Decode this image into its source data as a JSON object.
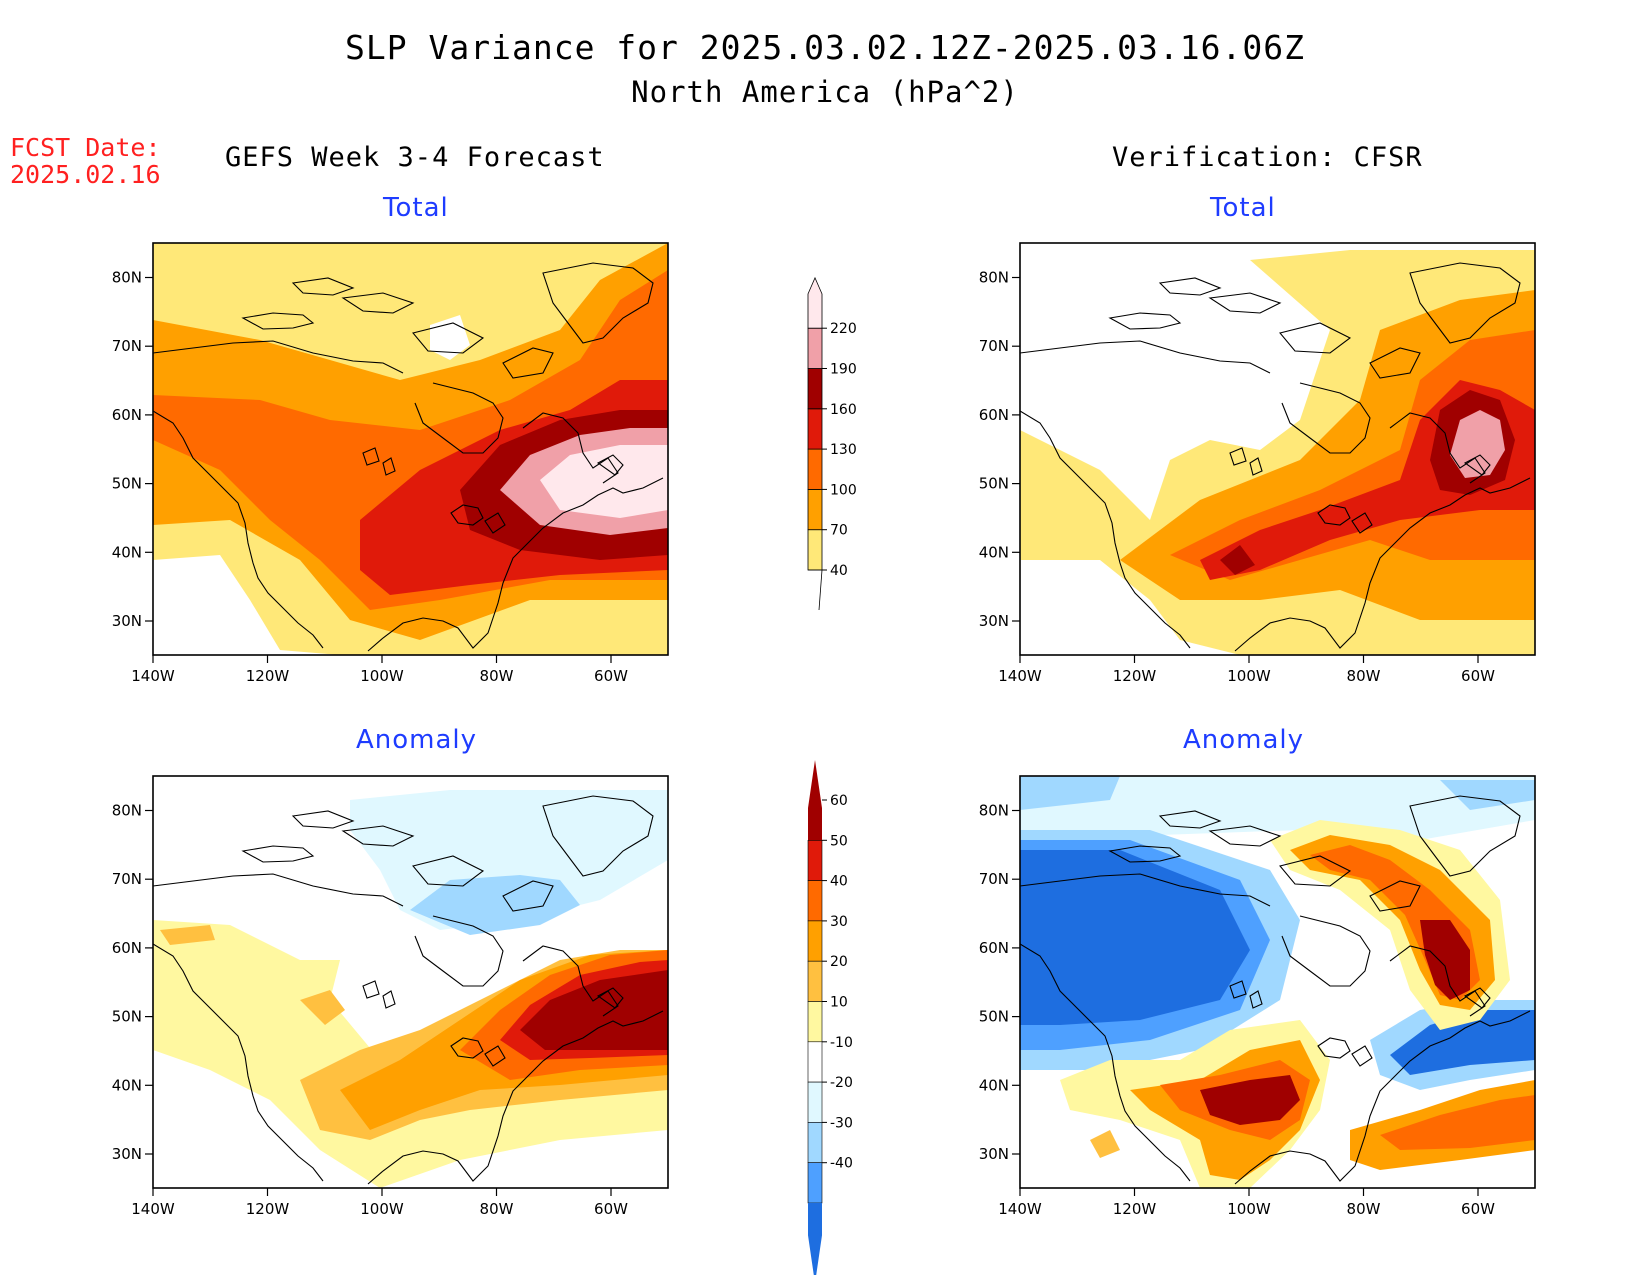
{
  "header": {
    "title_line1": "SLP Variance for 2025.03.02.12Z-2025.03.16.06Z",
    "title_line2": "North America (hPa^2)",
    "fcst_label": "FCST Date:",
    "fcst_date": "2025.02.16"
  },
  "columns": {
    "left": "GEFS Week 3-4 Forecast",
    "right": "Verification: CFSR"
  },
  "panels": [
    {
      "subtitle": "Total"
    },
    {
      "subtitle": "Total"
    },
    {
      "subtitle": "Anomaly"
    },
    {
      "subtitle": "Anomaly"
    }
  ],
  "axes": {
    "lon_labels": [
      "140W",
      "120W",
      "100W",
      "80W",
      "60W"
    ],
    "lat_labels": [
      "30N",
      "40N",
      "50N",
      "60N",
      "70N",
      "80N"
    ]
  },
  "colorbars": {
    "total": {
      "levels": [
        "40",
        "70",
        "100",
        "130",
        "160",
        "190",
        "220"
      ],
      "colors": [
        "#ffe878",
        "#ffa000",
        "#ff6a00",
        "#e01a0a",
        "#a00000",
        "#f0a0a8",
        "#ffe8ec"
      ]
    },
    "anomaly": {
      "levels": [
        "60",
        "50",
        "40",
        "30",
        "20",
        "10",
        "-10",
        "-20",
        "-30",
        "-40"
      ],
      "colors": [
        "#a00000",
        "#e01a0a",
        "#ff6a00",
        "#ffa000",
        "#ffc040",
        "#fff8a0",
        "#ffffff",
        "#e0f8ff",
        "#a0d8ff",
        "#4ea0ff",
        "#1e6ee0"
      ]
    }
  }
}
